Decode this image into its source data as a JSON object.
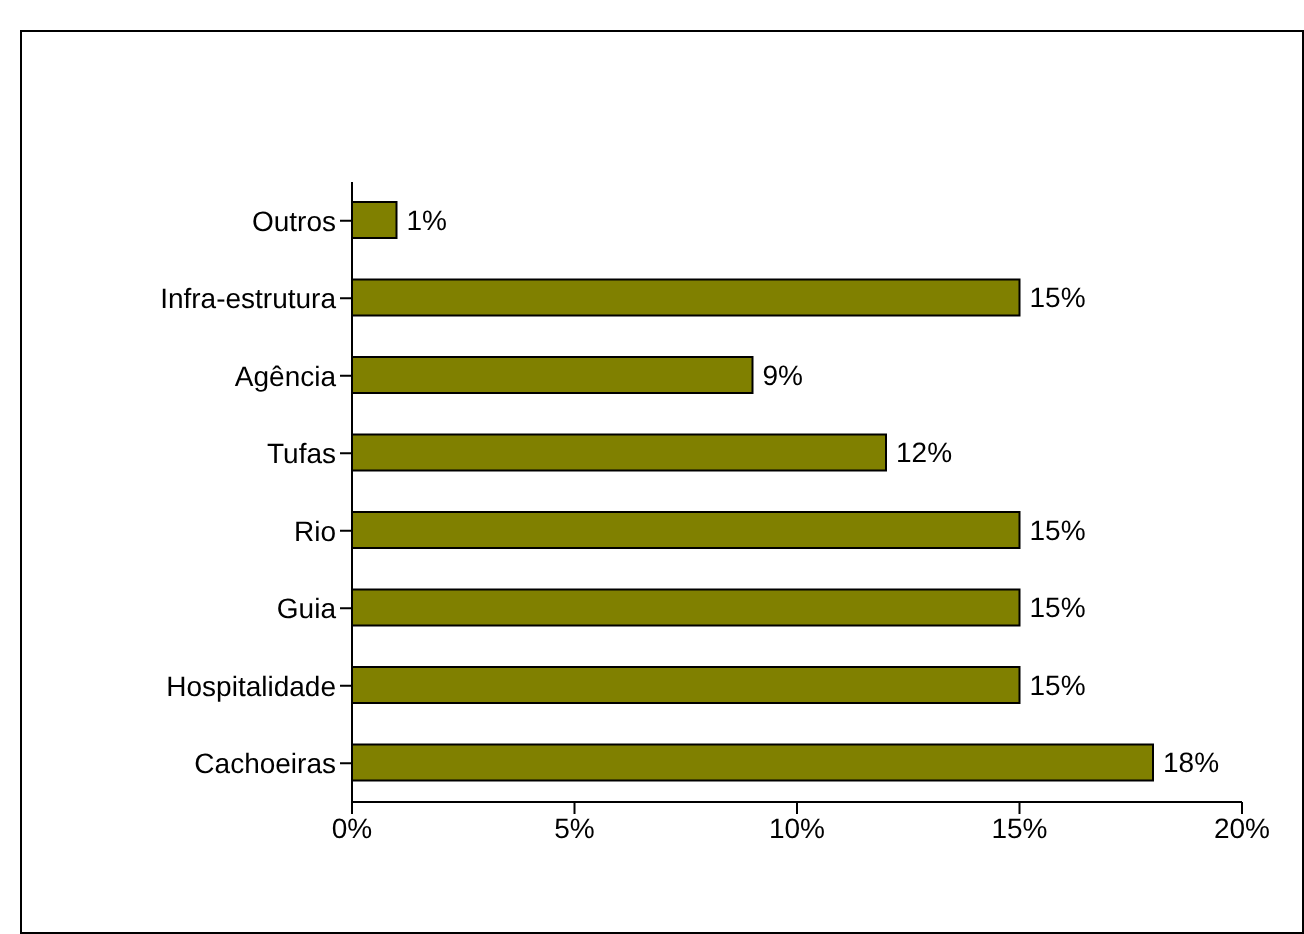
{
  "chart_data": {
    "type": "bar",
    "orientation": "horizontal",
    "categories": [
      "Outros",
      "Infra-estrutura",
      "Agência",
      "Tufas",
      "Rio",
      "Guia",
      "Hospitalidade",
      "Cachoeiras"
    ],
    "values": [
      1,
      15,
      9,
      12,
      15,
      15,
      15,
      18
    ],
    "value_labels": [
      "1%",
      "15%",
      "9%",
      "12%",
      "15%",
      "15%",
      "15%",
      "18%"
    ],
    "color": "#808000",
    "xlim": [
      0,
      20
    ],
    "xticks": [
      {
        "value": 0,
        "label": "0%"
      },
      {
        "value": 5,
        "label": "5%"
      },
      {
        "value": 10,
        "label": "10%"
      },
      {
        "value": 15,
        "label": "15%"
      },
      {
        "value": 20,
        "label": "20%"
      }
    ],
    "grid": false,
    "legend": false
  }
}
